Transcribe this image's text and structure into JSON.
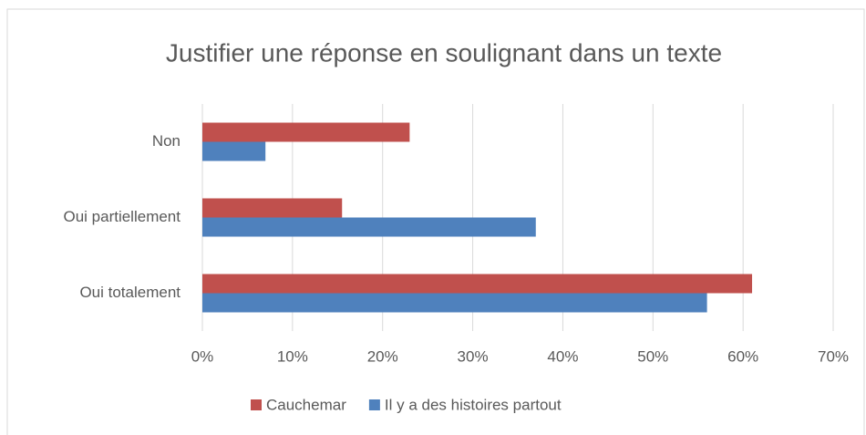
{
  "chart_data": {
    "type": "hbar",
    "title": "Justifier une réponse en soulignant dans un texte",
    "categories": [
      "Non",
      "Oui partiellement",
      "Oui totalement"
    ],
    "series": [
      {
        "name": "Cauchemar",
        "color": "#c0504d",
        "values": [
          23,
          15.5,
          61
        ]
      },
      {
        "name": "Il y a des histoires partout",
        "color": "#4f81bd",
        "values": [
          7,
          37,
          56
        ]
      }
    ],
    "xlim": [
      0,
      70
    ],
    "xticks": [
      {
        "value": 0,
        "label": "0%"
      },
      {
        "value": 10,
        "label": "10%"
      },
      {
        "value": 20,
        "label": "20%"
      },
      {
        "value": 30,
        "label": "30%"
      },
      {
        "value": 40,
        "label": "40%"
      },
      {
        "value": 50,
        "label": "50%"
      },
      {
        "value": 60,
        "label": "60%"
      },
      {
        "value": 70,
        "label": "70%"
      }
    ],
    "grid": true,
    "legend": "bottom"
  }
}
